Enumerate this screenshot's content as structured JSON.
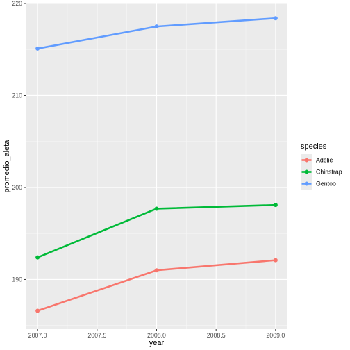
{
  "chart_data": {
    "type": "line",
    "xlabel": "year",
    "ylabel": "promedio_aleta",
    "x": [
      2007,
      2008,
      2009
    ],
    "x_ticks": [
      "2007.0",
      "2007.5",
      "2008.0",
      "2008.5",
      "2009.0"
    ],
    "y_ticks": [
      "190",
      "200",
      "210",
      "220"
    ],
    "xlim": [
      2006.9,
      2009.1
    ],
    "ylim": [
      184.6,
      220.0
    ],
    "grid": true,
    "legend": {
      "title": "species",
      "placement": "right"
    },
    "series": [
      {
        "name": "Adelie",
        "color": "#F8766D",
        "values": [
          186.6,
          191.0,
          192.1
        ]
      },
      {
        "name": "Chinstrap",
        "color": "#00BA38",
        "values": [
          192.4,
          197.7,
          198.1
        ]
      },
      {
        "name": "Gentoo",
        "color": "#619CFF",
        "values": [
          215.1,
          217.5,
          218.4
        ]
      }
    ]
  }
}
